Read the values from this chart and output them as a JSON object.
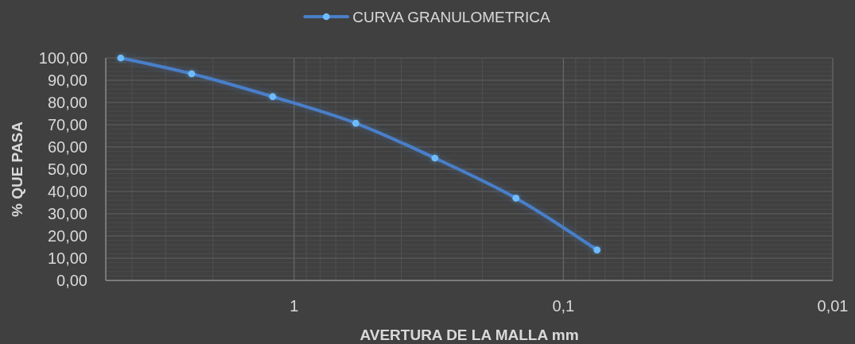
{
  "chart_data": {
    "type": "line",
    "xlabel": "AVERTURA DE LA MALLA mm",
    "ylabel": "% QUE PASA",
    "x": [
      4.4,
      2.4,
      1.2,
      0.59,
      0.3,
      0.15,
      0.075
    ],
    "series": [
      {
        "name": "CURVA GRANULOMETRICA",
        "color": "#4a7fc9",
        "values": [
          100,
          92.9,
          82.6,
          70.7,
          55.0,
          37.0,
          13.7
        ]
      }
    ],
    "log": "x",
    "xlim": [
      5,
      0.01
    ],
    "xticks": [
      {
        "value": 1,
        "label": "1"
      },
      {
        "value": 0.1,
        "label": "0,1"
      },
      {
        "value": 0.01,
        "label": "0,01"
      }
    ],
    "ylim": [
      0,
      100
    ],
    "yticks": [
      {
        "value": 0,
        "label": "0,00"
      },
      {
        "value": 10,
        "label": "10,00"
      },
      {
        "value": 20,
        "label": "20,00"
      },
      {
        "value": 30,
        "label": "30,00"
      },
      {
        "value": 40,
        "label": "40,00"
      },
      {
        "value": 50,
        "label": "50,00"
      },
      {
        "value": 60,
        "label": "60,00"
      },
      {
        "value": 70,
        "label": "70,00"
      },
      {
        "value": 80,
        "label": "80,00"
      },
      {
        "value": 90,
        "label": "90,00"
      },
      {
        "value": 100,
        "label": "100,00"
      }
    ],
    "grid": true,
    "legend": "top",
    "marker": "circle"
  }
}
